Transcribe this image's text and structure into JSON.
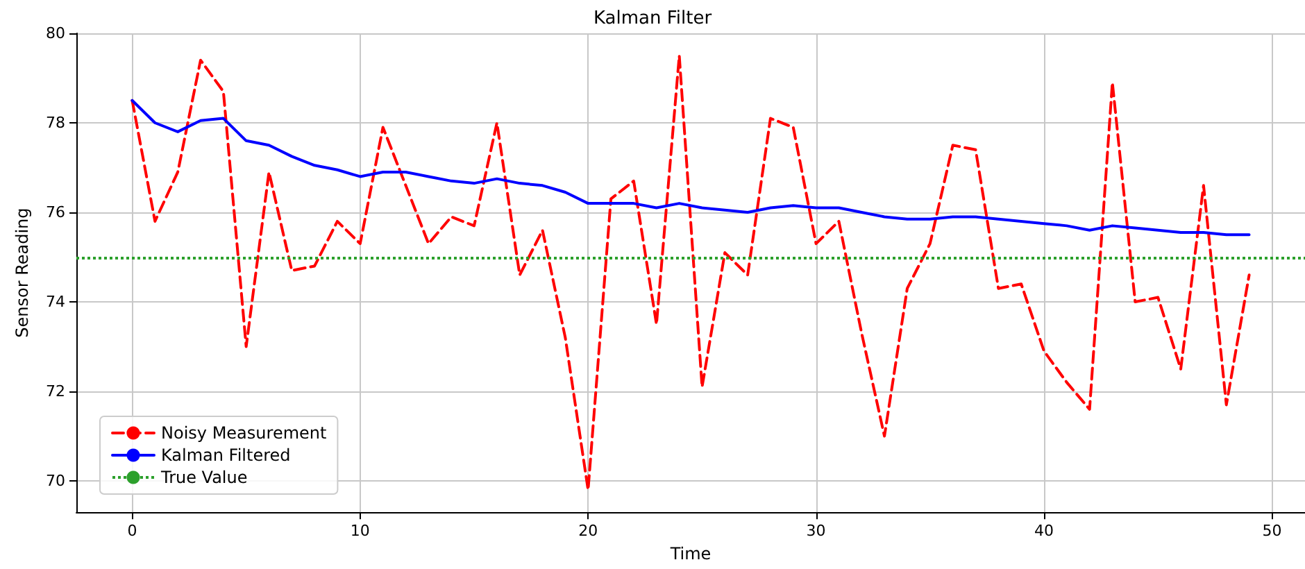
{
  "chart_data": {
    "type": "line",
    "title": "Kalman Filter",
    "xlabel": "Time",
    "ylabel": "Sensor Reading",
    "x": [
      0,
      1,
      2,
      3,
      4,
      5,
      6,
      7,
      8,
      9,
      10,
      11,
      12,
      13,
      14,
      15,
      16,
      17,
      18,
      19,
      20,
      21,
      22,
      23,
      24,
      25,
      26,
      27,
      28,
      29,
      30,
      31,
      32,
      33,
      34,
      35,
      36,
      37,
      38,
      39,
      40,
      41,
      42,
      43,
      44,
      45,
      46,
      47,
      48,
      49
    ],
    "series": [
      {
        "name": "Noisy Measurement",
        "color": "#ff0000",
        "line_style": "dashed",
        "values": [
          78.5,
          75.8,
          76.9,
          79.4,
          78.7,
          73.0,
          76.9,
          74.7,
          74.8,
          75.8,
          75.3,
          77.9,
          76.6,
          75.3,
          75.9,
          75.7,
          78.0,
          74.6,
          75.6,
          73.2,
          69.8,
          76.3,
          76.7,
          73.5,
          79.5,
          72.1,
          75.1,
          74.6,
          78.1,
          77.9,
          75.3,
          75.8,
          73.3,
          71.0,
          74.3,
          75.3,
          77.5,
          77.4,
          74.3,
          74.4,
          72.9,
          72.2,
          71.6,
          78.9,
          74.0,
          74.1,
          72.5,
          76.6,
          71.7,
          74.6
        ]
      },
      {
        "name": "Kalman Filtered",
        "color": "#0000ff",
        "line_style": "solid",
        "values": [
          78.5,
          78.0,
          77.8,
          78.05,
          78.1,
          77.6,
          77.5,
          77.25,
          77.05,
          76.95,
          76.8,
          76.9,
          76.9,
          76.8,
          76.7,
          76.65,
          76.75,
          76.65,
          76.6,
          76.45,
          76.2,
          76.2,
          76.2,
          76.1,
          76.2,
          76.1,
          76.05,
          76.0,
          76.1,
          76.15,
          76.1,
          76.1,
          76.0,
          75.9,
          75.85,
          75.85,
          75.9,
          75.9,
          75.85,
          75.8,
          75.75,
          75.7,
          75.6,
          75.7,
          75.65,
          75.6,
          75.55,
          75.55,
          75.5,
          75.5
        ]
      }
    ],
    "ref_lines": [
      {
        "axis": "y",
        "value": 75,
        "label": "True Value",
        "color": "#2ca02c",
        "line_style": "dotted"
      }
    ],
    "xlim": [
      -2.45,
      51.45
    ],
    "xticks": [
      0,
      10,
      20,
      30,
      40,
      50
    ],
    "ylim": [
      69.3,
      80.0
    ],
    "yticks": [
      70,
      72,
      74,
      76,
      78,
      80
    ],
    "grid": true,
    "legend": "bottom left",
    "marker": "none"
  }
}
